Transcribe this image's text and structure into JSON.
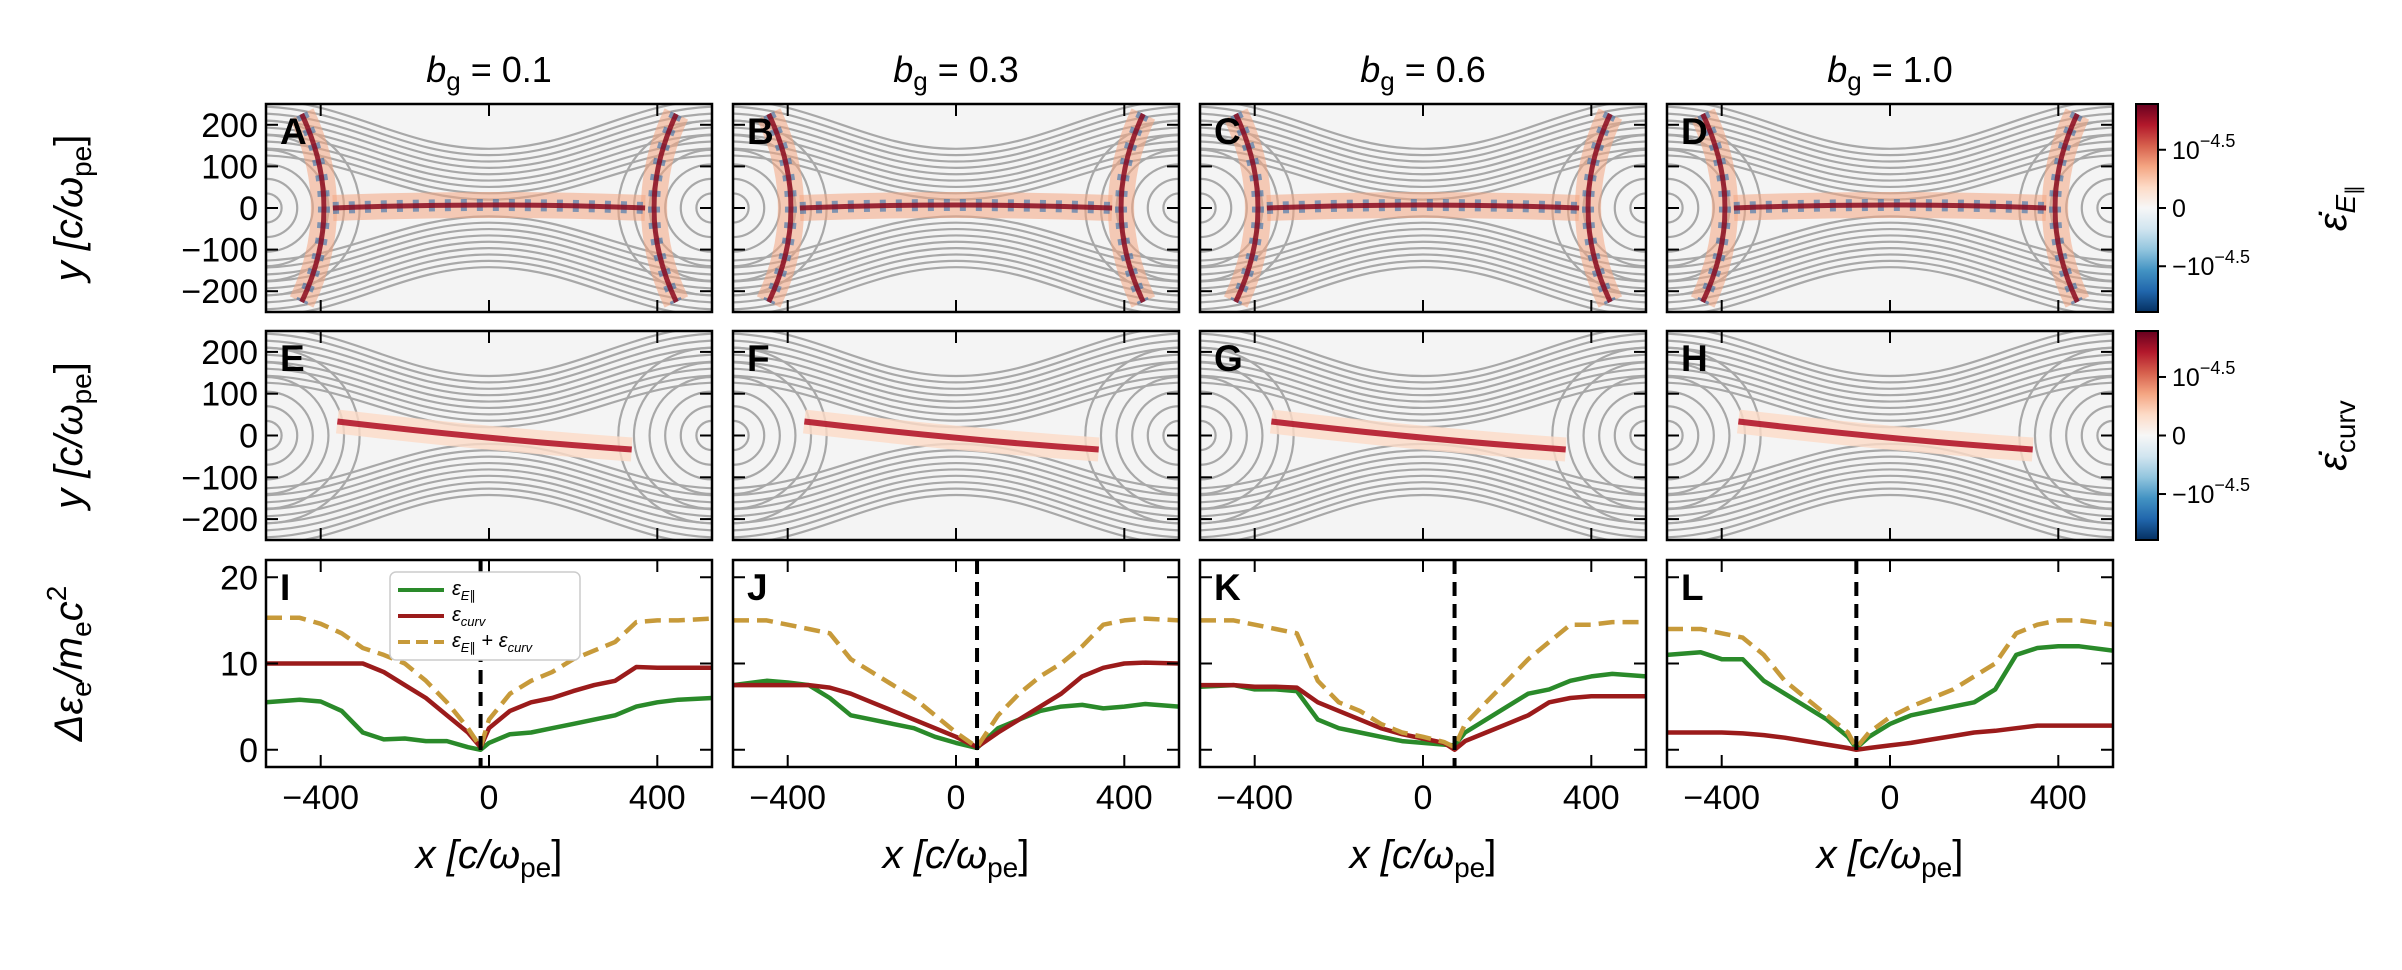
{
  "columns": [
    {
      "title": "b",
      "subscript": "g",
      "value": "= 0.1"
    },
    {
      "title": "b",
      "subscript": "g",
      "value": "= 0.3"
    },
    {
      "title": "b",
      "subscript": "g",
      "value": "= 0.6"
    },
    {
      "title": "b",
      "subscript": "g",
      "value": "= 1.0"
    }
  ],
  "panel_letters": {
    "row1": [
      "A",
      "B",
      "C",
      "D"
    ],
    "row2": [
      "E",
      "F",
      "G",
      "H"
    ],
    "row3": [
      "I",
      "J",
      "K",
      "L"
    ]
  },
  "axis_titles": {
    "y_top": {
      "main": "y",
      "bracket": "[c/ω",
      "sub": "pe",
      "close": "]"
    },
    "y_bottom": {
      "main": "Δε",
      "sub1": "e",
      "mid": "/m",
      "sub2": "e",
      "tail": "c",
      "sup": "2"
    },
    "x": {
      "main": "x",
      "bracket": "[c/ω",
      "sub": "pe",
      "close": "]"
    }
  },
  "colorbars": [
    {
      "label": "ε̇",
      "label_sub": "E",
      "label_subsub": "∥",
      "ticks": [
        {
          "text": "10",
          "exp": "−4.5"
        },
        {
          "text": "0",
          "exp": ""
        },
        {
          "text": "−10",
          "exp": "−4.5"
        }
      ],
      "colors": [
        "#67001f",
        "#b2182b",
        "#d6604d",
        "#f4a582",
        "#fddbc7",
        "#f7f7f7",
        "#d1e5f0",
        "#92c5de",
        "#4393c3",
        "#2166ac",
        "#053061"
      ]
    },
    {
      "label": "ε̇",
      "label_sub": "curv",
      "label_subsub": "",
      "ticks": [
        {
          "text": "10",
          "exp": "−4.5"
        },
        {
          "text": "0",
          "exp": ""
        },
        {
          "text": "−10",
          "exp": "−4.5"
        }
      ],
      "colors": [
        "#67001f",
        "#b2182b",
        "#d6604d",
        "#f4a582",
        "#fddbc7",
        "#f7f7f7",
        "#d1e5f0",
        "#92c5de",
        "#4393c3",
        "#2166ac",
        "#053061"
      ]
    }
  ],
  "legend": [
    {
      "label": "ε",
      "sub": "E∥",
      "plus": "",
      "label2": "",
      "sub2": "",
      "color": "#2a8a2a",
      "dash": false
    },
    {
      "label": "ε",
      "sub": "curv",
      "plus": "",
      "label2": "",
      "sub2": "",
      "color": "#9b1b1b",
      "dash": false
    },
    {
      "label": "ε",
      "sub": "E∥",
      "plus": " + ",
      "label2": "ε",
      "sub2": "curv",
      "color": "#c79a3a",
      "dash": true
    }
  ],
  "chart_data": [
    {
      "type": "heatmap",
      "description_rows": "rows 1-2 are 2D field maps with magnetic field lines",
      "ylim": [
        -250,
        250
      ],
      "xlim": [
        -530,
        530
      ],
      "yticks": [
        200,
        100,
        0,
        -100,
        -200
      ],
      "ytick_labels": [
        "200",
        "100",
        "0",
        "−100",
        "−200"
      ]
    },
    {
      "type": "line",
      "xlim": [
        -530,
        530
      ],
      "ylim": [
        -2,
        22
      ],
      "xticks": [
        -400,
        0,
        400
      ],
      "xtick_labels": [
        "−400",
        "0",
        "400"
      ],
      "yticks": [
        0,
        10,
        20
      ],
      "ytick_labels": [
        "0",
        "10",
        "20"
      ],
      "panels": [
        {
          "xpoint": -20,
          "x": [
            -530,
            -450,
            -400,
            -350,
            -300,
            -250,
            -200,
            -150,
            -100,
            -50,
            -20,
            0,
            50,
            100,
            150,
            200,
            250,
            300,
            350,
            400,
            450,
            530
          ],
          "series": [
            {
              "name": "E_par",
              "values": [
                5.5,
                5.8,
                5.6,
                4.5,
                2.0,
                1.2,
                1.3,
                1.0,
                1.0,
                0.3,
                0.0,
                0.8,
                1.8,
                2.0,
                2.5,
                3.0,
                3.5,
                4.0,
                5.0,
                5.5,
                5.8,
                6.0
              ]
            },
            {
              "name": "curv",
              "values": [
                10.0,
                10.0,
                10.0,
                10.0,
                10.0,
                9.0,
                7.5,
                6.0,
                4.0,
                2.0,
                0.3,
                2.5,
                4.5,
                5.5,
                6.0,
                6.8,
                7.5,
                8.0,
                9.6,
                9.5,
                9.5,
                9.5
              ]
            },
            {
              "name": "sum",
              "values": [
                15.3,
                15.3,
                14.6,
                13.5,
                11.8,
                11.0,
                10.0,
                8.0,
                5.5,
                2.5,
                0.3,
                3.5,
                6.5,
                8.0,
                9.0,
                10.5,
                11.5,
                12.5,
                14.8,
                15.0,
                15.0,
                15.2
              ]
            }
          ]
        },
        {
          "xpoint": 50,
          "x": [
            -530,
            -450,
            -400,
            -350,
            -300,
            -250,
            -200,
            -150,
            -100,
            -50,
            0,
            50,
            100,
            150,
            200,
            250,
            300,
            350,
            400,
            450,
            530
          ],
          "series": [
            {
              "name": "E_par",
              "values": [
                7.5,
                8.0,
                7.8,
                7.5,
                6.0,
                4.0,
                3.5,
                3.0,
                2.5,
                1.5,
                0.8,
                0.2,
                2.5,
                3.5,
                4.5,
                5.0,
                5.2,
                4.8,
                5.0,
                5.3,
                5.0
              ]
            },
            {
              "name": "curv",
              "values": [
                7.5,
                7.5,
                7.5,
                7.5,
                7.2,
                6.5,
                5.5,
                4.5,
                3.5,
                2.5,
                1.5,
                0.3,
                2.0,
                3.5,
                5.0,
                6.5,
                8.5,
                9.5,
                10.0,
                10.1,
                10.0
              ]
            },
            {
              "name": "sum",
              "values": [
                15.0,
                15.0,
                14.5,
                14.0,
                13.5,
                10.5,
                9.0,
                7.5,
                6.0,
                4.0,
                2.0,
                0.3,
                4.0,
                6.5,
                8.5,
                10.0,
                12.0,
                14.5,
                15.0,
                15.2,
                15.0
              ]
            }
          ]
        },
        {
          "xpoint": 75,
          "x": [
            -530,
            -450,
            -400,
            -350,
            -300,
            -250,
            -200,
            -150,
            -100,
            -50,
            0,
            50,
            75,
            100,
            150,
            200,
            250,
            300,
            350,
            400,
            450,
            530
          ],
          "series": [
            {
              "name": "E_par",
              "values": [
                7.3,
                7.5,
                7.0,
                7.0,
                6.8,
                3.5,
                2.5,
                2.0,
                1.5,
                1.0,
                0.8,
                0.6,
                0.5,
                2.0,
                3.5,
                5.0,
                6.5,
                7.0,
                8.0,
                8.5,
                8.8,
                8.5
              ]
            },
            {
              "name": "curv",
              "values": [
                7.5,
                7.5,
                7.3,
                7.3,
                7.2,
                5.5,
                4.5,
                3.5,
                2.5,
                1.8,
                1.3,
                0.8,
                0.0,
                1.0,
                2.0,
                3.0,
                4.0,
                5.5,
                6.0,
                6.2,
                6.2,
                6.2
              ]
            },
            {
              "name": "sum",
              "values": [
                15.0,
                15.0,
                14.5,
                14.0,
                13.5,
                8.0,
                5.5,
                4.5,
                3.0,
                2.0,
                1.5,
                0.9,
                0.3,
                3.0,
                5.5,
                8.0,
                10.5,
                12.5,
                14.5,
                14.5,
                14.8,
                14.8
              ]
            }
          ]
        },
        {
          "xpoint": -80,
          "x": [
            -530,
            -450,
            -400,
            -350,
            -300,
            -250,
            -200,
            -150,
            -100,
            -80,
            -50,
            0,
            50,
            100,
            150,
            200,
            250,
            300,
            350,
            400,
            450,
            530
          ],
          "series": [
            {
              "name": "E_par",
              "values": [
                11.0,
                11.3,
                10.5,
                10.5,
                8.0,
                6.5,
                5.0,
                3.5,
                1.5,
                0.2,
                1.5,
                3.0,
                4.0,
                4.5,
                5.0,
                5.5,
                7.0,
                11.0,
                11.8,
                12.0,
                12.0,
                11.5
              ]
            },
            {
              "name": "curv",
              "values": [
                2.0,
                2.0,
                2.0,
                1.9,
                1.7,
                1.4,
                1.0,
                0.6,
                0.2,
                0.0,
                0.2,
                0.5,
                0.8,
                1.2,
                1.6,
                2.0,
                2.2,
                2.5,
                2.8,
                2.8,
                2.8,
                2.8
              ]
            },
            {
              "name": "sum",
              "values": [
                14.0,
                14.0,
                13.5,
                13.0,
                11.0,
                8.0,
                6.0,
                4.0,
                2.0,
                0.2,
                2.0,
                3.8,
                5.0,
                6.0,
                7.0,
                8.5,
                10.0,
                13.5,
                14.5,
                15.0,
                15.0,
                14.5
              ]
            }
          ]
        }
      ]
    }
  ]
}
